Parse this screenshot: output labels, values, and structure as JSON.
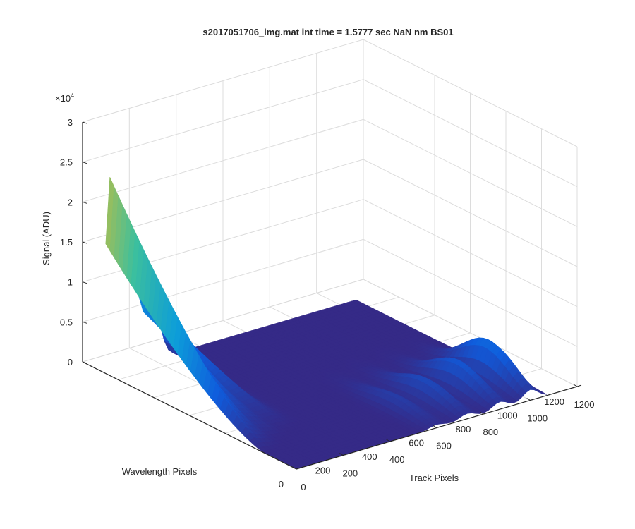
{
  "chart_data": {
    "type": "surface",
    "title": "s2017051706_img.mat int time = 1.5777 sec  NaN nm BS01",
    "xlabel": "Track Pixels",
    "ylabel": "Wavelength Pixels",
    "zlabel": "Signal (ADU)",
    "z_exponent_label": "×10",
    "z_exponent_power": "4",
    "xlim": [
      0,
      1200
    ],
    "ylim": [
      0,
      1200
    ],
    "zlim": [
      0,
      30000
    ],
    "x_ticks": [
      "0",
      "200",
      "400",
      "600",
      "800",
      "1000",
      "1200"
    ],
    "y_ticks": [
      "0",
      "200",
      "400",
      "600",
      "800",
      "1000",
      "1200"
    ],
    "z_ticks": [
      "0",
      "0.5",
      "1",
      "1.5",
      "2",
      "2.5",
      "3"
    ],
    "grid": true,
    "colormap": "parula",
    "colors": {
      "low": "#352a87",
      "mid_low": "#0f5cdd",
      "mid": "#0d9dd9",
      "mid_high": "#3bbf9e",
      "high": "#a5be55",
      "peak": "#e1b93a"
    },
    "surface": {
      "x_extent": [
        0,
        1070
      ],
      "y_extent": [
        0,
        1070
      ],
      "baseline": 0,
      "ridges_low_x": [
        {
          "y_start": 1070,
          "y_end": 180,
          "peak": 22000
        },
        {
          "y_start": 1070,
          "y_end": 200,
          "peak": 15000
        },
        {
          "y_start": 1070,
          "y_end": 250,
          "peak": 10000
        },
        {
          "y_start": 1070,
          "y_end": 300,
          "peak": 7000
        }
      ],
      "ridges_high_x": [
        {
          "x": 1000,
          "peak": 5000
        },
        {
          "x": 870,
          "peak": 3500
        },
        {
          "x": 730,
          "peak": 2500
        },
        {
          "x": 600,
          "peak": 1500
        }
      ]
    }
  }
}
